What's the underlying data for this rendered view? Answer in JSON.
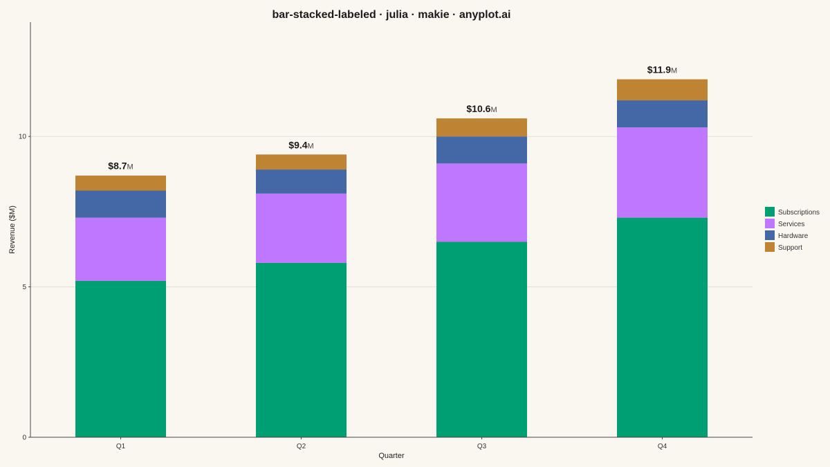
{
  "chart_data": {
    "type": "bar",
    "stacked": true,
    "title": "bar-stacked-labeled · julia · makie · anyplot.ai",
    "xlabel": "Quarter",
    "ylabel": "Revenue ($M)",
    "categories": [
      "Q1",
      "Q2",
      "Q3",
      "Q4"
    ],
    "ylim": [
      0,
      13.8
    ],
    "yticks": [
      0,
      5,
      10
    ],
    "grid": true,
    "legend_position": "right",
    "series": [
      {
        "name": "Subscriptions",
        "color": "#009E73",
        "values": [
          5.2,
          5.8,
          6.5,
          7.3
        ]
      },
      {
        "name": "Services",
        "color": "#C077FF",
        "values": [
          2.1,
          2.3,
          2.6,
          3.0
        ]
      },
      {
        "name": "Hardware",
        "color": "#4467A5",
        "values": [
          0.9,
          0.8,
          0.9,
          0.9
        ]
      },
      {
        "name": "Support",
        "color": "#BF8334",
        "values": [
          0.5,
          0.5,
          0.6,
          0.7
        ]
      }
    ],
    "totals": [
      {
        "value": "$8.7",
        "unit": "M"
      },
      {
        "value": "$9.4",
        "unit": "M"
      },
      {
        "value": "$10.6",
        "unit": "M"
      },
      {
        "value": "$11.9",
        "unit": "M"
      }
    ]
  }
}
